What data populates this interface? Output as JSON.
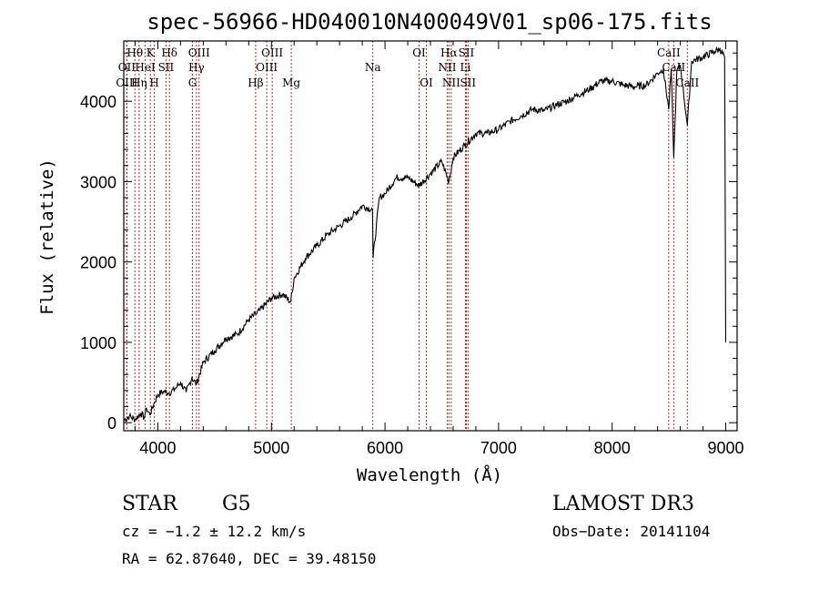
{
  "chart_data": {
    "type": "line",
    "title": "spec-56966-HD040010N400049V01_sp06-175.fits",
    "xlabel": "Wavelength (Å)",
    "ylabel": "Flux (relative)",
    "xlim": [
      3700,
      9100
    ],
    "ylim": [
      -100,
      4750
    ],
    "xticks": [
      4000,
      5000,
      6000,
      7000,
      8000,
      9000
    ],
    "xtick_labels": [
      "4000",
      "5000",
      "6000",
      "7000",
      "8000",
      "9000"
    ],
    "yticks": [
      0,
      1000,
      2000,
      3000,
      4000
    ],
    "ytick_labels": [
      "0",
      "1000",
      "2000",
      "3000",
      "4000"
    ],
    "series": [
      {
        "name": "spectrum",
        "x": [
          3700,
          3750,
          3800,
          3850,
          3880,
          3900,
          3930,
          3970,
          4000,
          4050,
          4100,
          4150,
          4200,
          4250,
          4300,
          4340,
          4400,
          4500,
          4600,
          4700,
          4800,
          4861,
          4900,
          5000,
          5100,
          5170,
          5200,
          5300,
          5400,
          5500,
          5600,
          5700,
          5800,
          5890,
          5895,
          5950,
          6000,
          6100,
          6200,
          6300,
          6400,
          6500,
          6563,
          6600,
          6700,
          6800,
          6900,
          7000,
          7100,
          7200,
          7300,
          7400,
          7500,
          7600,
          7700,
          7800,
          7900,
          8000,
          8100,
          8200,
          8300,
          8400,
          8450,
          8498,
          8520,
          8542,
          8570,
          8600,
          8662,
          8700,
          8800,
          8900,
          8950,
          8990,
          9000
        ],
        "y": [
          30,
          80,
          40,
          120,
          60,
          180,
          100,
          250,
          350,
          390,
          370,
          420,
          500,
          380,
          560,
          480,
          750,
          900,
          1050,
          1100,
          1280,
          1350,
          1400,
          1550,
          1600,
          1500,
          1800,
          2050,
          2200,
          2350,
          2450,
          2550,
          2700,
          2650,
          2050,
          2800,
          2850,
          3050,
          3050,
          2950,
          3100,
          3250,
          3000,
          3300,
          3450,
          3600,
          3600,
          3650,
          3750,
          3820,
          3900,
          3880,
          3950,
          4000,
          4080,
          4150,
          4250,
          4250,
          4200,
          4180,
          4200,
          4350,
          4400,
          3900,
          4400,
          3300,
          4380,
          4450,
          3700,
          4500,
          4550,
          4620,
          4650,
          4550,
          1000
        ]
      }
    ],
    "lines": [
      {
        "label": "Hθ",
        "wl": 3798,
        "row": 1
      },
      {
        "label": "OII",
        "wl": 3727,
        "row": 2
      },
      {
        "label": "OIII",
        "wl": 3727,
        "row": 3
      },
      {
        "label": "Hη",
        "wl": 3835,
        "row": 3
      },
      {
        "label": "HeI",
        "wl": 3889,
        "row": 2
      },
      {
        "label": "K",
        "wl": 3934,
        "row": 1
      },
      {
        "label": "SII",
        "wl": 4072,
        "row": 2
      },
      {
        "label": "H",
        "wl": 3969,
        "row": 3
      },
      {
        "label": "Hδ",
        "wl": 4102,
        "row": 1
      },
      {
        "label": "OIII",
        "wl": 4363,
        "row": 1
      },
      {
        "label": "Hγ",
        "wl": 4340,
        "row": 2
      },
      {
        "label": "G",
        "wl": 4305,
        "row": 3
      },
      {
        "label": "Hβ",
        "wl": 4861,
        "row": 3
      },
      {
        "label": "OIII",
        "wl": 5007,
        "row": 1
      },
      {
        "label": "OIII",
        "wl": 4959,
        "row": 2
      },
      {
        "label": "Mg",
        "wl": 5175,
        "row": 3
      },
      {
        "label": "Na",
        "wl": 5893,
        "row": 2
      },
      {
        "label": "OI",
        "wl": 6300,
        "row": 1
      },
      {
        "label": "OI",
        "wl": 6364,
        "row": 3
      },
      {
        "label": "Hα",
        "wl": 6563,
        "row": 1
      },
      {
        "label": "SII",
        "wl": 6716,
        "row": 1
      },
      {
        "label": "NII",
        "wl": 6548,
        "row": 2
      },
      {
        "label": "Li",
        "wl": 6708,
        "row": 2
      },
      {
        "label": "NII",
        "wl": 6583,
        "row": 3
      },
      {
        "label": "SII",
        "wl": 6731,
        "row": 3
      },
      {
        "label": "CaII",
        "wl": 8498,
        "row": 1
      },
      {
        "label": "CaII",
        "wl": 8542,
        "row": 2
      },
      {
        "label": "CaII",
        "wl": 8662,
        "row": 3
      }
    ]
  },
  "info": {
    "object_class": "STAR",
    "subclass": "G5",
    "survey": "LAMOST DR3",
    "cz": "cz = −1.2 ± 12.2 km/s",
    "obs_date": "Obs−Date: 20141104",
    "coords": "RA =  62.87640, DEC =  39.48150"
  }
}
